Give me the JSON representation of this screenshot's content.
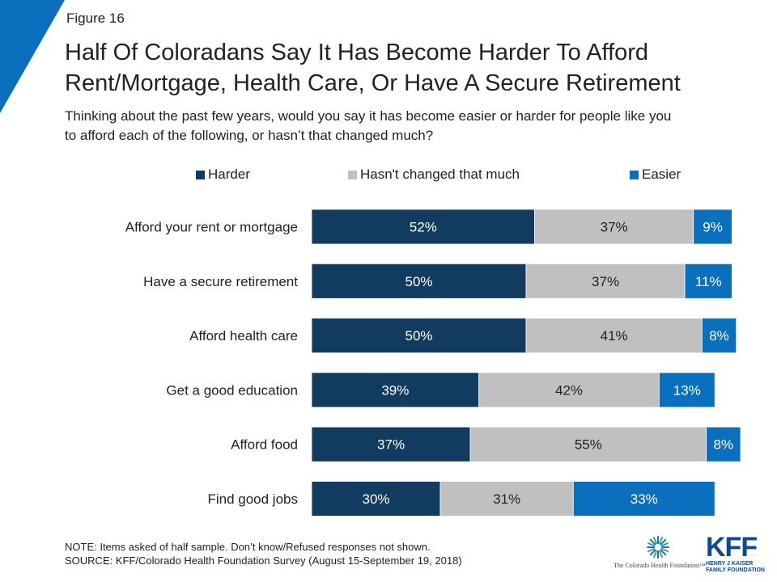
{
  "figure_label": "Figure 16",
  "title_line1": "Half Of Coloradans Say It Has Become Harder To Afford",
  "title_line2": "Rent/Mortgage, Health Care, Or Have A Secure Retirement",
  "subtitle_line1": "Thinking about the past few years, would you say it has become easier or harder for people like you",
  "subtitle_line2": "to afford each of the following, or hasn’t that changed much?",
  "colors": {
    "harder": "#123c5f",
    "unchanged": "#c0c0c0",
    "easier": "#0a6fbd",
    "brand": "#0a6fbd"
  },
  "chart_data": {
    "type": "bar",
    "orientation": "horizontal",
    "stacked": true,
    "categories": [
      "Afford your rent or mortgage",
      "Have a secure retirement",
      "Afford health care",
      "Get a good education",
      "Afford food",
      "Find good jobs"
    ],
    "series": [
      {
        "name": "Harder",
        "values": [
          52,
          50,
          50,
          39,
          37,
          30
        ],
        "labels": [
          "52%",
          "50%",
          "50%",
          "39%",
          "37%",
          "30%"
        ]
      },
      {
        "name": "Hasn't changed that much",
        "values": [
          37,
          37,
          41,
          42,
          55,
          31
        ],
        "labels": [
          "37%",
          "37%",
          "41%",
          "42%",
          "55%",
          "31%"
        ]
      },
      {
        "name": "Easier",
        "values": [
          9,
          11,
          8,
          13,
          8,
          33
        ],
        "labels": [
          "9%",
          "11%",
          "8%",
          "13%",
          "8%",
          "33%"
        ]
      }
    ],
    "xlim": [
      0,
      100
    ],
    "legend": "top",
    "grid": false
  },
  "note_line1": "NOTE: Items asked of half sample. Don’t know/Refused responses not shown.",
  "note_line2": "SOURCE: KFF/Colorado Health Foundation Survey (August 15-September 19, 2018)",
  "logos": {
    "chf": "The Colorado Health Foundation™",
    "kff": "KFF",
    "kff_sub1": "HENRY J KAISER",
    "kff_sub2": "FAMILY FOUNDATION"
  }
}
